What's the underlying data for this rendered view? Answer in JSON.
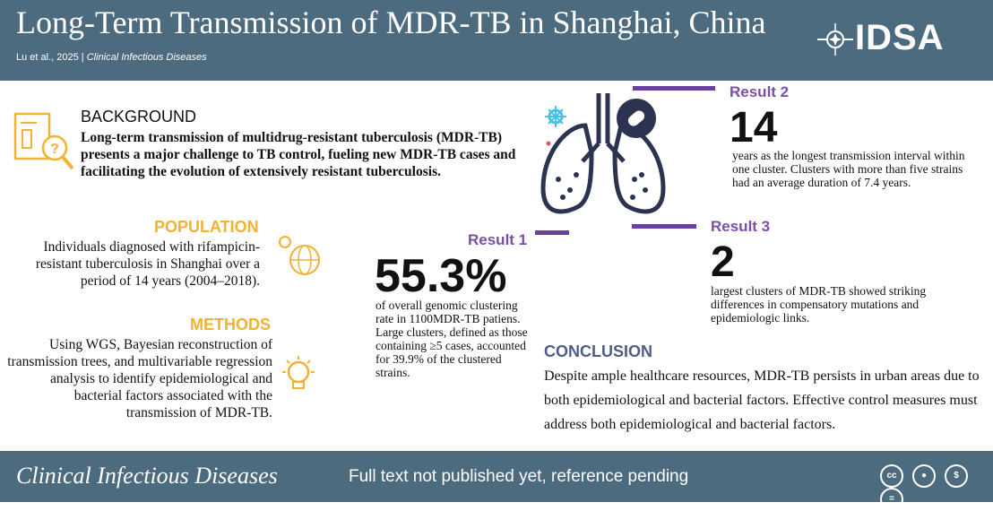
{
  "header": {
    "title": "Long-Term Transmission of MDR-TB in Shanghai, China",
    "authors": "Lu et al., 2025",
    "separator": "|",
    "journal": "Clinical Infectious Diseases",
    "logo_text": "IDSA"
  },
  "background": {
    "heading": "BACKGROUND",
    "text": "Long-term transmission of multidrug-resistant tuberculosis (MDR-TB) presents a major challenge to TB control, fueling new MDR-TB cases and facilitating the evolution of extensively resistant tuberculosis."
  },
  "population": {
    "heading": "POPULATION",
    "text": "Individuals diagnosed with rifampicin-resistant tuberculosis in Shanghai over a period of 14 years (2004–2018)."
  },
  "methods": {
    "heading": "METHODS",
    "text": "Using WGS, Bayesian reconstruction of transmission trees, and multivariable regression analysis to identify epidemiological and bacterial factors associated with the transmission of MDR-TB."
  },
  "result1": {
    "label": "Result 1",
    "value": "55.3%",
    "text": "of overall genomic clustering rate in 1100MDR-TB patiens. Large clusters, defined as those containing ≥5 cases, accounted for 39.9% of the clustered strains."
  },
  "result2": {
    "label": "Result 2",
    "value": "14",
    "text": "years as the longest transmission interval within one cluster. Clusters with more than five strains had an average duration of 7.4 years."
  },
  "result3": {
    "label": "Result 3",
    "value": "2",
    "text": "largest clusters of MDR-TB showed striking differences in compensatory mutations and epidemiologic links."
  },
  "conclusion": {
    "heading": "CONCLUSION",
    "text": "Despite ample healthcare resources, MDR-TB persists in urban areas due to both epidemiological and bacterial factors. Effective control measures must address both epidemiological and bacterial factors."
  },
  "footer": {
    "journal": "Clinical Infectious Diseases",
    "note": "Full text not published yet, reference pending"
  },
  "license_icons": [
    "cc-icon",
    "by-icon",
    "nc-icon",
    "nd-icon"
  ],
  "colors": {
    "header_bg": "#4d6b7f",
    "accent_orange": "#f2b233",
    "accent_purple": "#7a4fa8",
    "lung_navy": "#2b3350",
    "conclusion_blue": "#4d5f86"
  }
}
